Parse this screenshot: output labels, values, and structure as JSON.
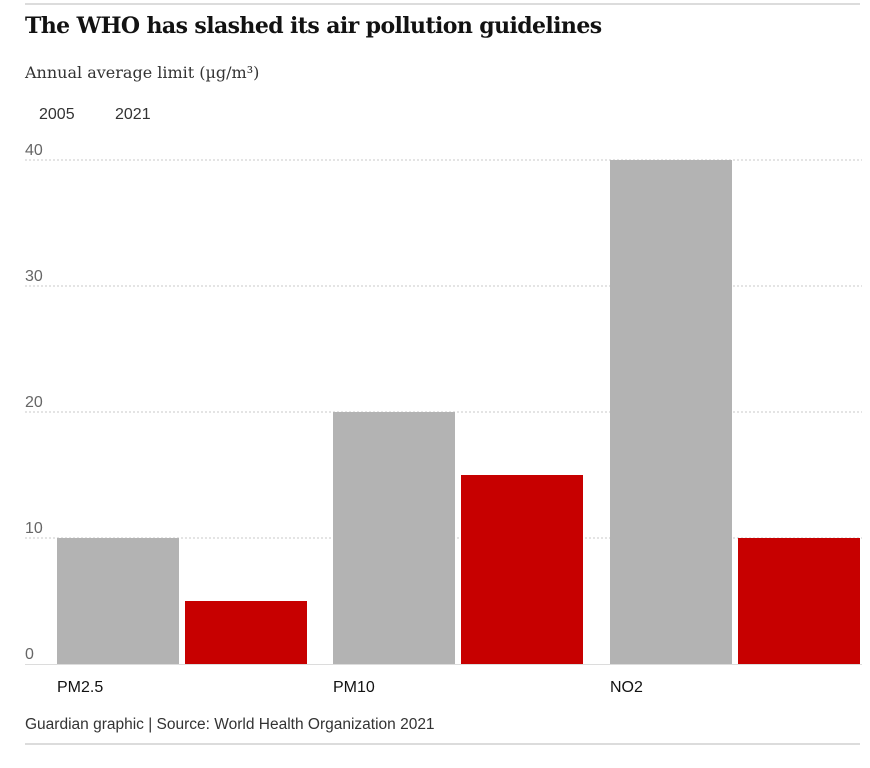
{
  "title": "The WHO has slashed its air pollution guidelines",
  "subtitle": "Annual average limit (µg/m³)",
  "legend": [
    {
      "label": "2005",
      "color": "#b3b3b3"
    },
    {
      "label": "2021",
      "color": "#c70000"
    }
  ],
  "source": "Guardian graphic | Source: World Health Organization 2021",
  "chart_data": {
    "type": "bar",
    "title": "The WHO has slashed its air pollution guidelines",
    "ylabel": "Annual average limit (µg/m³)",
    "xlabel": "",
    "categories": [
      "PM2.5",
      "PM10",
      "NO2"
    ],
    "series": [
      {
        "name": "2005",
        "color": "#b3b3b3",
        "values": [
          10,
          20,
          40
        ]
      },
      {
        "name": "2021",
        "color": "#c70000",
        "values": [
          5,
          15,
          10
        ]
      }
    ],
    "ylim": [
      0,
      40
    ],
    "yticks": [
      0,
      10,
      20,
      30,
      40
    ],
    "grid": true,
    "legend_position": "top-left"
  }
}
